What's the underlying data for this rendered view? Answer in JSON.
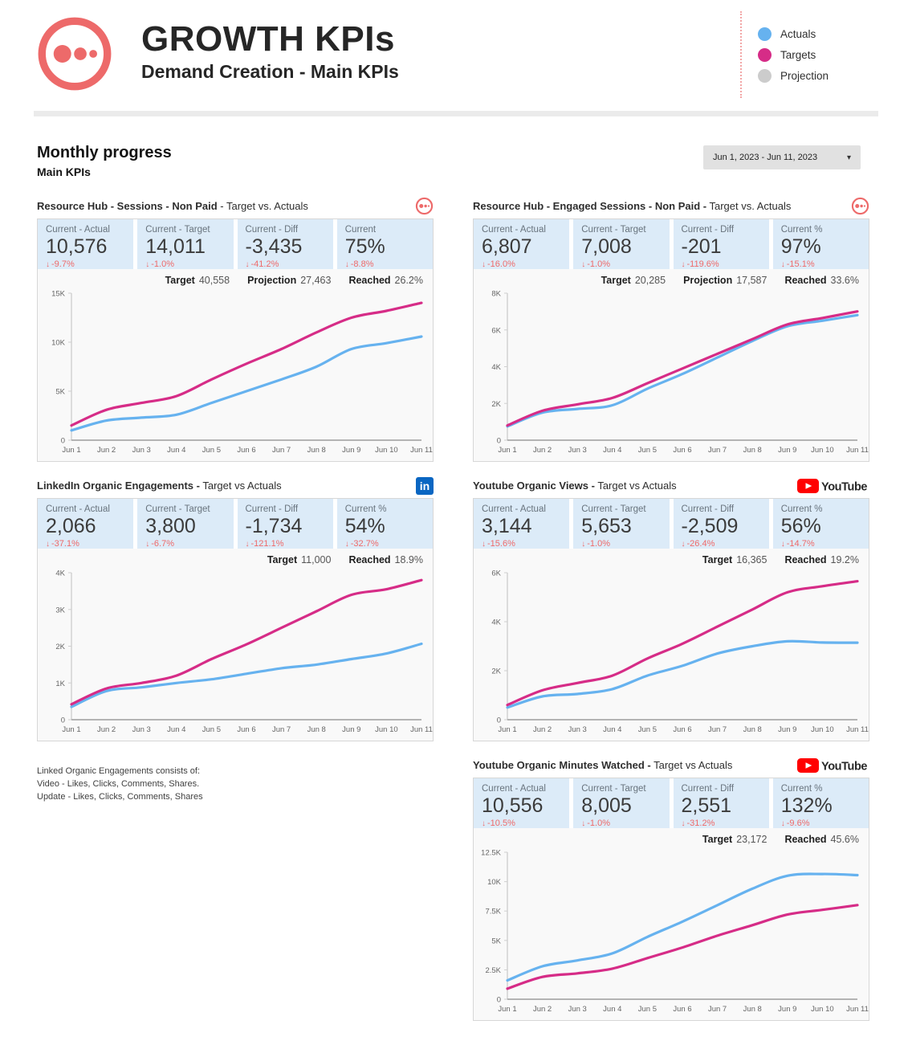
{
  "header": {
    "title": "GROWTH KPIs",
    "subtitle": "Demand Creation - Main KPIs",
    "legend": [
      {
        "label": "Actuals",
        "color": "#66B2EF"
      },
      {
        "label": "Targets",
        "color": "#D62C87"
      },
      {
        "label": "Projection",
        "color": "#CCCCCC"
      }
    ]
  },
  "section": {
    "title": "Monthly progress",
    "subtitle": "Main KPIs",
    "date_range": "Jun 1, 2023 - Jun 11, 2023"
  },
  "icons": {
    "down_arrow": "↓",
    "dropdown_caret": "▾",
    "linkedin_text": "in",
    "youtube_label": "YouTube"
  },
  "footnote": {
    "line1": "Linked Organic Engagements consists of:",
    "line2": "Video - Likes, Clicks, Comments, Shares.",
    "line3": "Update - Likes, Clicks, Comments, Shares"
  },
  "cards": [
    {
      "title_bold": "Resource Hub - Sessions - Non Paid",
      "title_rest": " - Target vs. Actuals",
      "stats": [
        {
          "label": "Current - Actual",
          "value": "10,576",
          "delta": "-9.7%"
        },
        {
          "label": "Current - Target",
          "value": "14,011",
          "delta": "-1.0%"
        },
        {
          "label": "Current - Diff",
          "value": "-3,435",
          "delta": "-41.2%"
        },
        {
          "label": "Current",
          "value": "75%",
          "delta": "-8.8%"
        }
      ],
      "summary": {
        "target_label": "Target",
        "target_value": "40,558",
        "projection_label": "Projection",
        "projection_value": "27,463",
        "reached_label": "Reached",
        "reached_value": "26.2%"
      }
    },
    {
      "title_bold": "Resource Hub - Engaged Sessions - Non Paid -",
      "title_rest": " Target vs. Actuals",
      "stats": [
        {
          "label": "Current - Actual",
          "value": "6,807",
          "delta": "-16.0%"
        },
        {
          "label": "Current - Target",
          "value": "7,008",
          "delta": "-1.0%"
        },
        {
          "label": "Current - Diff",
          "value": "-201",
          "delta": "-119.6%"
        },
        {
          "label": "Current %",
          "value": "97%",
          "delta": "-15.1%"
        }
      ],
      "summary": {
        "target_label": "Target",
        "target_value": "20,285",
        "projection_label": "Projection",
        "projection_value": "17,587",
        "reached_label": "Reached",
        "reached_value": "33.6%"
      }
    },
    {
      "title_bold": "LinkedIn Organic Engagements -",
      "title_rest": " Target vs Actuals",
      "stats": [
        {
          "label": "Current - Actual",
          "value": "2,066",
          "delta": "-37.1%"
        },
        {
          "label": "Current - Target",
          "value": "3,800",
          "delta": "-6.7%"
        },
        {
          "label": "Current - Diff",
          "value": "-1,734",
          "delta": "-121.1%"
        },
        {
          "label": "Current %",
          "value": "54%",
          "delta": "-32.7%"
        }
      ],
      "summary": {
        "target_label": "Target",
        "target_value": "11,000",
        "reached_label": "Reached",
        "reached_value": "18.9%"
      }
    },
    {
      "title_bold": "Youtube Organic Views -",
      "title_rest": " Target vs Actuals",
      "stats": [
        {
          "label": "Current - Actual",
          "value": "3,144",
          "delta": "-15.6%"
        },
        {
          "label": "Current - Target",
          "value": "5,653",
          "delta": "-1.0%"
        },
        {
          "label": "Current - Diff",
          "value": "-2,509",
          "delta": "-26.4%"
        },
        {
          "label": "Current %",
          "value": "56%",
          "delta": "-14.7%"
        }
      ],
      "summary": {
        "target_label": "Target",
        "target_value": "16,365",
        "reached_label": "Reached",
        "reached_value": "19.2%"
      }
    },
    {
      "title_bold": "Youtube Organic Minutes Watched -",
      "title_rest": " Target vs Actuals",
      "stats": [
        {
          "label": "Current - Actual",
          "value": "10,556",
          "delta": "-10.5%"
        },
        {
          "label": "Current - Target",
          "value": "8,005",
          "delta": "-1.0%"
        },
        {
          "label": "Current - Diff",
          "value": "2,551",
          "delta": "-31.2%"
        },
        {
          "label": "Current %",
          "value": "132%",
          "delta": "-9.6%"
        }
      ],
      "summary": {
        "target_label": "Target",
        "target_value": "23,172",
        "reached_label": "Reached",
        "reached_value": "45.6%"
      }
    }
  ],
  "chart_data": [
    {
      "type": "line",
      "title": "Resource Hub - Sessions - Non Paid - Target vs. Actuals",
      "x": [
        "Jun 1",
        "Jun 2",
        "Jun 3",
        "Jun 4",
        "Jun 5",
        "Jun 6",
        "Jun 7",
        "Jun 8",
        "Jun 9",
        "Jun 10",
        "Jun 11"
      ],
      "series": [
        {
          "name": "Actuals",
          "color": "#66B2EF",
          "values": [
            1000,
            2000,
            2300,
            2600,
            3800,
            5000,
            6200,
            7500,
            9300,
            9900,
            10576
          ]
        },
        {
          "name": "Targets",
          "color": "#D62C87",
          "values": [
            1500,
            3100,
            3800,
            4500,
            6200,
            7800,
            9300,
            11000,
            12500,
            13200,
            14011
          ]
        }
      ],
      "ylim": [
        0,
        15000
      ],
      "yticks": [
        0,
        5000,
        10000,
        15000
      ],
      "ytick_labels": [
        "0",
        "5K",
        "10K",
        "15K"
      ],
      "grid": false,
      "legend_position": "top-right-of-page"
    },
    {
      "type": "line",
      "title": "Resource Hub - Engaged Sessions - Non Paid - Target vs. Actuals",
      "x": [
        "Jun 1",
        "Jun 2",
        "Jun 3",
        "Jun 4",
        "Jun 5",
        "Jun 6",
        "Jun 7",
        "Jun 8",
        "Jun 9",
        "Jun 10",
        "Jun 11"
      ],
      "series": [
        {
          "name": "Actuals",
          "color": "#66B2EF",
          "values": [
            750,
            1500,
            1700,
            1900,
            2800,
            3600,
            4500,
            5400,
            6200,
            6500,
            6807
          ]
        },
        {
          "name": "Targets",
          "color": "#D62C87",
          "values": [
            800,
            1600,
            1950,
            2300,
            3100,
            3900,
            4700,
            5500,
            6300,
            6650,
            7008
          ]
        }
      ],
      "ylim": [
        0,
        8000
      ],
      "yticks": [
        0,
        2000,
        4000,
        6000,
        8000
      ],
      "ytick_labels": [
        "0",
        "2K",
        "4K",
        "6K",
        "8K"
      ],
      "grid": false
    },
    {
      "type": "line",
      "title": "LinkedIn Organic Engagements - Target vs Actuals",
      "x": [
        "Jun 1",
        "Jun 2",
        "Jun 3",
        "Jun 4",
        "Jun 5",
        "Jun 6",
        "Jun 7",
        "Jun 8",
        "Jun 9",
        "Jun 10",
        "Jun 11"
      ],
      "series": [
        {
          "name": "Actuals",
          "color": "#66B2EF",
          "values": [
            350,
            780,
            880,
            1000,
            1100,
            1250,
            1400,
            1500,
            1650,
            1800,
            2066
          ]
        },
        {
          "name": "Targets",
          "color": "#D62C87",
          "values": [
            420,
            850,
            1000,
            1200,
            1650,
            2050,
            2500,
            2950,
            3400,
            3550,
            3800
          ]
        }
      ],
      "ylim": [
        0,
        4000
      ],
      "yticks": [
        0,
        1000,
        2000,
        3000,
        4000
      ],
      "ytick_labels": [
        "0",
        "1K",
        "2K",
        "3K",
        "4K"
      ],
      "grid": false
    },
    {
      "type": "line",
      "title": "Youtube Organic Views - Target vs Actuals",
      "x": [
        "Jun 1",
        "Jun 2",
        "Jun 3",
        "Jun 4",
        "Jun 5",
        "Jun 6",
        "Jun 7",
        "Jun 8",
        "Jun 9",
        "Jun 10",
        "Jun 11"
      ],
      "series": [
        {
          "name": "Actuals",
          "color": "#66B2EF",
          "values": [
            500,
            950,
            1050,
            1250,
            1800,
            2200,
            2700,
            3000,
            3200,
            3150,
            3144
          ]
        },
        {
          "name": "Targets",
          "color": "#D62C87",
          "values": [
            600,
            1200,
            1500,
            1800,
            2500,
            3100,
            3800,
            4500,
            5200,
            5450,
            5653
          ]
        }
      ],
      "ylim": [
        0,
        6000
      ],
      "yticks": [
        0,
        2000,
        4000,
        6000
      ],
      "ytick_labels": [
        "0",
        "2K",
        "4K",
        "6K"
      ],
      "grid": false
    },
    {
      "type": "line",
      "title": "Youtube Organic Minutes Watched - Target vs Actuals",
      "x": [
        "Jun 1",
        "Jun 2",
        "Jun 3",
        "Jun 4",
        "Jun 5",
        "Jun 6",
        "Jun 7",
        "Jun 8",
        "Jun 9",
        "Jun 10",
        "Jun 11"
      ],
      "series": [
        {
          "name": "Actuals",
          "color": "#66B2EF",
          "values": [
            1600,
            2800,
            3300,
            3900,
            5300,
            6600,
            8000,
            9400,
            10500,
            10650,
            10556
          ]
        },
        {
          "name": "Targets",
          "color": "#D62C87",
          "values": [
            900,
            1900,
            2200,
            2600,
            3500,
            4400,
            5400,
            6300,
            7200,
            7600,
            8005
          ]
        }
      ],
      "ylim": [
        0,
        12500
      ],
      "yticks": [
        0,
        2500,
        5000,
        7500,
        10000,
        12500
      ],
      "ytick_labels": [
        "0",
        "2.5K",
        "5K",
        "7.5K",
        "10K",
        "12.5K"
      ],
      "grid": false
    }
  ]
}
